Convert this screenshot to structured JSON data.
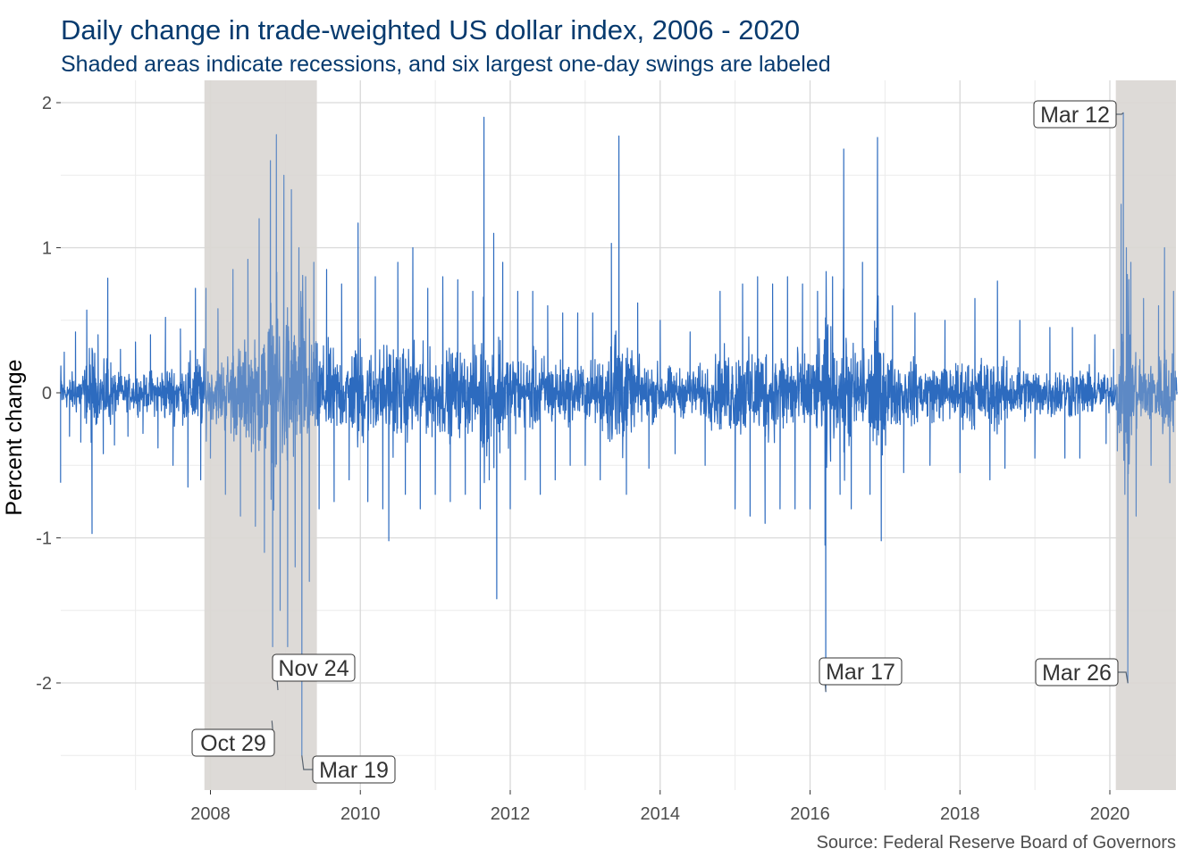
{
  "chart_data": {
    "type": "line",
    "title": "Daily change in trade-weighted US dollar index, 2006 - 2020",
    "subtitle": "Shaded areas indicate recessions, and six largest one-day swings are labeled",
    "caption": "Source: Federal Reserve Board of Governors",
    "xlabel": "",
    "ylabel": "Percent change",
    "xlim": [
      2006.0,
      2020.9
    ],
    "ylim": [
      -2.7,
      2.0
    ],
    "x_ticks": [
      2008,
      2010,
      2012,
      2014,
      2016,
      2018,
      2020
    ],
    "x_tick_labels": [
      "2008",
      "2010",
      "2012",
      "2014",
      "2016",
      "2018",
      "2020"
    ],
    "y_ticks": [
      -2,
      -1,
      0,
      1,
      2
    ],
    "y_tick_labels": [
      "-2",
      "-1",
      "0",
      "1",
      "2"
    ],
    "grid": true,
    "background": "none",
    "line_color": "#2d6bbf",
    "recession_color": "#dad7d4",
    "recessions": [
      {
        "start": 2007.92,
        "end": 2009.42
      },
      {
        "start": 2020.08,
        "end": 2020.9
      }
    ],
    "series": [
      {
        "values_description_none": null,
        "points": [
          [
            2006.0,
            -0.62
          ],
          [
            2006.05,
            0.28
          ],
          [
            2006.12,
            -0.3
          ],
          [
            2006.2,
            0.42
          ],
          [
            2006.27,
            -0.34
          ],
          [
            2006.35,
            0.57
          ],
          [
            2006.42,
            -0.97
          ],
          [
            2006.5,
            0.4
          ],
          [
            2006.57,
            -0.42
          ],
          [
            2006.63,
            0.79
          ],
          [
            2006.72,
            -0.36
          ],
          [
            2006.8,
            0.3
          ],
          [
            2006.9,
            -0.3
          ],
          [
            2007.0,
            0.35
          ],
          [
            2007.1,
            -0.28
          ],
          [
            2007.2,
            0.4
          ],
          [
            2007.3,
            -0.38
          ],
          [
            2007.4,
            0.52
          ],
          [
            2007.5,
            -0.5
          ],
          [
            2007.6,
            0.44
          ],
          [
            2007.7,
            -0.65
          ],
          [
            2007.8,
            0.72
          ],
          [
            2007.87,
            -0.6
          ],
          [
            2007.94,
            0.72
          ],
          [
            2008.0,
            -0.45
          ],
          [
            2008.1,
            0.58
          ],
          [
            2008.2,
            -0.7
          ],
          [
            2008.3,
            0.85
          ],
          [
            2008.4,
            -0.85
          ],
          [
            2008.5,
            0.92
          ],
          [
            2008.6,
            -0.92
          ],
          [
            2008.65,
            1.2
          ],
          [
            2008.72,
            -1.1
          ],
          [
            2008.8,
            1.6
          ],
          [
            2008.83,
            -1.75
          ],
          [
            2008.88,
            1.78
          ],
          [
            2008.93,
            -1.5
          ],
          [
            2008.98,
            1.5
          ],
          [
            2009.03,
            -1.75
          ],
          [
            2009.08,
            1.4
          ],
          [
            2009.13,
            -1.2
          ],
          [
            2009.18,
            1.0
          ],
          [
            2009.22,
            -2.5
          ],
          [
            2009.27,
            0.8
          ],
          [
            2009.32,
            -1.3
          ],
          [
            2009.38,
            0.9
          ],
          [
            2009.45,
            -0.8
          ],
          [
            2009.55,
            0.85
          ],
          [
            2009.65,
            -0.75
          ],
          [
            2009.75,
            0.75
          ],
          [
            2009.85,
            -0.6
          ],
          [
            2009.97,
            1.17
          ],
          [
            2010.1,
            -0.75
          ],
          [
            2010.2,
            0.8
          ],
          [
            2010.3,
            -0.8
          ],
          [
            2010.38,
            -1.02
          ],
          [
            2010.5,
            0.9
          ],
          [
            2010.6,
            -0.7
          ],
          [
            2010.7,
            1.0
          ],
          [
            2010.8,
            -0.8
          ],
          [
            2010.9,
            0.72
          ],
          [
            2011.0,
            -0.7
          ],
          [
            2011.1,
            0.8
          ],
          [
            2011.2,
            -0.75
          ],
          [
            2011.3,
            0.78
          ],
          [
            2011.4,
            -0.7
          ],
          [
            2011.5,
            0.7
          ],
          [
            2011.6,
            -0.8
          ],
          [
            2011.65,
            1.9
          ],
          [
            2011.72,
            -0.6
          ],
          [
            2011.78,
            1.1
          ],
          [
            2011.82,
            -1.42
          ],
          [
            2011.9,
            0.9
          ],
          [
            2012.0,
            -0.8
          ],
          [
            2012.1,
            0.7
          ],
          [
            2012.2,
            -0.6
          ],
          [
            2012.3,
            0.7
          ],
          [
            2012.4,
            -0.7
          ],
          [
            2012.5,
            0.6
          ],
          [
            2012.6,
            -0.6
          ],
          [
            2012.7,
            0.55
          ],
          [
            2012.8,
            -0.5
          ],
          [
            2012.9,
            0.55
          ],
          [
            2013.0,
            -0.5
          ],
          [
            2013.1,
            0.55
          ],
          [
            2013.2,
            -0.6
          ],
          [
            2013.35,
            1.03
          ],
          [
            2013.45,
            1.77
          ],
          [
            2013.55,
            -0.7
          ],
          [
            2013.7,
            0.62
          ],
          [
            2013.85,
            -0.52
          ],
          [
            2014.0,
            0.5
          ],
          [
            2014.2,
            -0.42
          ],
          [
            2014.4,
            0.42
          ],
          [
            2014.6,
            -0.5
          ],
          [
            2014.8,
            0.7
          ],
          [
            2015.0,
            -0.8
          ],
          [
            2015.1,
            0.75
          ],
          [
            2015.2,
            -0.85
          ],
          [
            2015.3,
            0.8
          ],
          [
            2015.4,
            -0.9
          ],
          [
            2015.5,
            0.75
          ],
          [
            2015.6,
            -0.8
          ],
          [
            2015.7,
            0.8
          ],
          [
            2015.8,
            -0.8
          ],
          [
            2015.9,
            0.75
          ],
          [
            2016.0,
            -0.8
          ],
          [
            2016.1,
            0.7
          ],
          [
            2016.2,
            -1.05
          ],
          [
            2016.21,
            -2.06
          ],
          [
            2016.3,
            0.8
          ],
          [
            2016.4,
            -0.7
          ],
          [
            2016.45,
            1.68
          ],
          [
            2016.55,
            -0.8
          ],
          [
            2016.7,
            0.9
          ],
          [
            2016.8,
            -0.7
          ],
          [
            2016.9,
            1.76
          ],
          [
            2016.95,
            -1.02
          ],
          [
            2017.1,
            0.6
          ],
          [
            2017.25,
            -0.55
          ],
          [
            2017.4,
            0.55
          ],
          [
            2017.6,
            -0.5
          ],
          [
            2017.8,
            0.5
          ],
          [
            2018.0,
            -0.55
          ],
          [
            2018.2,
            0.65
          ],
          [
            2018.4,
            -0.6
          ],
          [
            2018.5,
            0.77
          ],
          [
            2018.6,
            -0.52
          ],
          [
            2018.8,
            0.5
          ],
          [
            2019.0,
            -0.45
          ],
          [
            2019.2,
            0.45
          ],
          [
            2019.4,
            -0.45
          ],
          [
            2019.5,
            0.45
          ],
          [
            2019.6,
            -0.45
          ],
          [
            2019.8,
            0.4
          ],
          [
            2019.95,
            -0.35
          ],
          [
            2020.05,
            0.3
          ],
          [
            2020.1,
            -0.4
          ],
          [
            2020.15,
            1.3
          ],
          [
            2020.18,
            1.93
          ],
          [
            2020.2,
            -0.7
          ],
          [
            2020.22,
            1.0
          ],
          [
            2020.24,
            -2.0
          ],
          [
            2020.28,
            0.9
          ],
          [
            2020.35,
            -0.85
          ],
          [
            2020.45,
            0.65
          ],
          [
            2020.55,
            -0.5
          ],
          [
            2020.65,
            0.6
          ],
          [
            2020.73,
            1.0
          ],
          [
            2020.8,
            -0.62
          ],
          [
            2020.85,
            0.7
          ],
          [
            2020.9,
            -0.3
          ]
        ]
      }
    ],
    "annotations": [
      {
        "label": "Mar 12",
        "x": 2020.18,
        "y": 1.93
      },
      {
        "label": "Mar 26",
        "x": 2020.24,
        "y": -2.0
      },
      {
        "label": "Mar 17",
        "x": 2016.21,
        "y": -2.06
      },
      {
        "label": "Nov 24",
        "x": 2008.9,
        "y": -2.05
      },
      {
        "label": "Oct 29",
        "x": 2008.82,
        "y": -2.26
      },
      {
        "label": "Mar 19",
        "x": 2009.22,
        "y": -2.5
      }
    ]
  }
}
